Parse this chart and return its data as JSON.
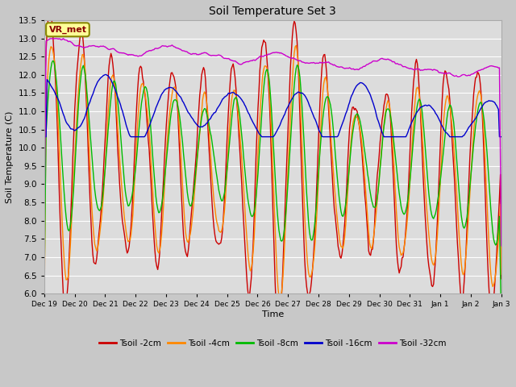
{
  "title": "Soil Temperature Set 3",
  "xlabel": "Time",
  "ylabel": "Soil Temperature (C)",
  "ylim": [
    6.0,
    13.5
  ],
  "yticks": [
    6.0,
    6.5,
    7.0,
    7.5,
    8.0,
    8.5,
    9.0,
    9.5,
    10.0,
    10.5,
    11.0,
    11.5,
    12.0,
    12.5,
    13.0,
    13.5
  ],
  "colors": {
    "Tsoil -2cm": "#cc0000",
    "Tsoil -4cm": "#ff8800",
    "Tsoil -8cm": "#00bb00",
    "Tsoil -16cm": "#0000cc",
    "Tsoil -32cm": "#cc00cc"
  },
  "fig_bg": "#c8c8c8",
  "plot_bg": "#dcdcdc",
  "grid_color": "#ffffff",
  "annotation_text": "VR_met",
  "annotation_bg": "#ffff99",
  "annotation_border": "#888800",
  "annotation_text_color": "#880000",
  "x_tick_labels": [
    "Dec 19",
    "Dec 20",
    "Dec 21",
    "Dec 22",
    "Dec 23",
    "Dec 24",
    "Dec 25",
    "Dec 26",
    "Dec 27",
    "Dec 28",
    "Dec 29",
    "Dec 30",
    "Dec 31",
    "Jan 1",
    "Jan 2",
    "Jan 3"
  ],
  "line_width": 1.0,
  "figsize": [
    6.4,
    4.8
  ],
  "dpi": 100
}
